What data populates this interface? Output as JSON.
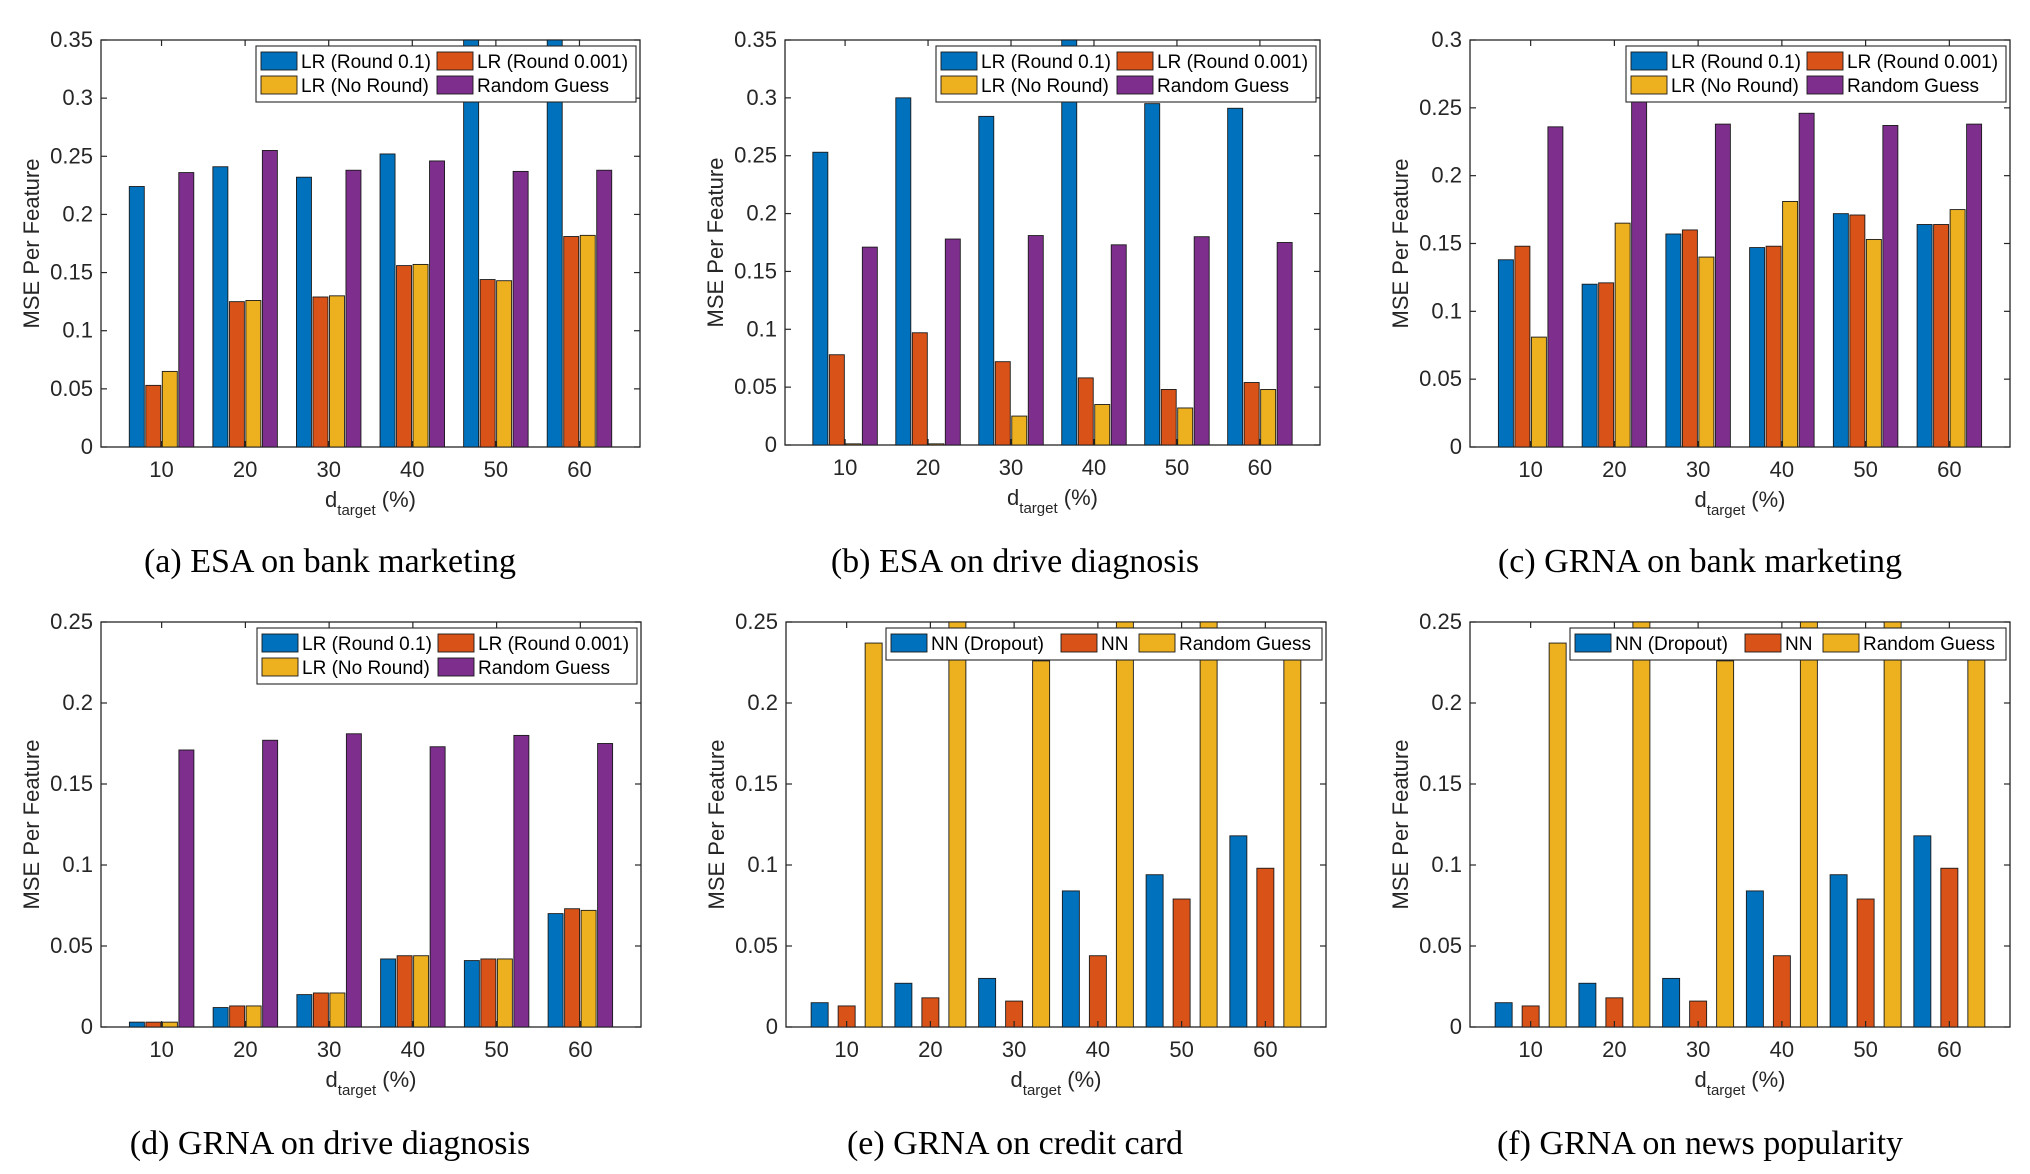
{
  "colors": {
    "blue": "#0072BD",
    "orange": "#D95319",
    "yellow": "#EDB120",
    "purple": "#7E2F8E",
    "axis": "#262626"
  },
  "chart_data": [
    {
      "id": "a",
      "type": "bar",
      "caption": "(a) ESA on bank marketing",
      "xlabel": "d",
      "xlabel_sub": "target",
      "xlabel_suffix": " (%)",
      "ylabel": "MSE Per Feature",
      "categories": [
        "10",
        "20",
        "30",
        "40",
        "50",
        "60"
      ],
      "ylim": [
        0,
        0.35
      ],
      "yticks": [
        0,
        0.05,
        0.1,
        0.15,
        0.2,
        0.25,
        0.3,
        0.35
      ],
      "ytick_labels": [
        "0",
        "0.05",
        "0.1",
        "0.15",
        "0.2",
        "0.25",
        "0.3",
        "0.35"
      ],
      "legend_position": "top-right",
      "legend_columns": 2,
      "series": [
        {
          "name": "LR (Round 0.1)",
          "color": "#0072BD",
          "values": [
            0.224,
            0.241,
            0.232,
            0.252,
            0.35,
            0.35
          ]
        },
        {
          "name": "LR (Round 0.001)",
          "color": "#D95319",
          "values": [
            0.053,
            0.125,
            0.129,
            0.156,
            0.144,
            0.181
          ]
        },
        {
          "name": "LR (No Round)",
          "color": "#EDB120",
          "values": [
            0.065,
            0.126,
            0.13,
            0.157,
            0.143,
            0.182
          ]
        },
        {
          "name": "Random Guess",
          "color": "#7E2F8E",
          "values": [
            0.236,
            0.255,
            0.238,
            0.246,
            0.237,
            0.238
          ]
        }
      ]
    },
    {
      "id": "b",
      "type": "bar",
      "caption": "(b) ESA on drive diagnosis",
      "xlabel": "d",
      "xlabel_sub": "target",
      "xlabel_suffix": " (%)",
      "ylabel": "MSE Per Feature",
      "categories": [
        "10",
        "20",
        "30",
        "40",
        "50",
        "60"
      ],
      "ylim": [
        0,
        0.35
      ],
      "yticks": [
        0,
        0.05,
        0.1,
        0.15,
        0.2,
        0.25,
        0.3,
        0.35
      ],
      "ytick_labels": [
        "0",
        "0.05",
        "0.1",
        "0.15",
        "0.2",
        "0.25",
        "0.3",
        "0.35"
      ],
      "legend_position": "top-right",
      "legend_columns": 2,
      "series": [
        {
          "name": "LR (Round 0.1)",
          "color": "#0072BD",
          "values": [
            0.253,
            0.3,
            0.284,
            0.35,
            0.295,
            0.291
          ]
        },
        {
          "name": "LR (Round 0.001)",
          "color": "#D95319",
          "values": [
            0.078,
            0.097,
            0.072,
            0.058,
            0.048,
            0.054
          ]
        },
        {
          "name": "LR (No Round)",
          "color": "#EDB120",
          "values": [
            0.001,
            0.001,
            0.025,
            0.035,
            0.032,
            0.048
          ]
        },
        {
          "name": "Random Guess",
          "color": "#7E2F8E",
          "values": [
            0.171,
            0.178,
            0.181,
            0.173,
            0.18,
            0.175
          ]
        }
      ]
    },
    {
      "id": "c",
      "type": "bar",
      "caption": "(c) GRNA on bank marketing",
      "xlabel": "d",
      "xlabel_sub": "target",
      "xlabel_suffix": " (%)",
      "ylabel": "MSE Per Feature",
      "categories": [
        "10",
        "20",
        "30",
        "40",
        "50",
        "60"
      ],
      "ylim": [
        0,
        0.3
      ],
      "yticks": [
        0,
        0.05,
        0.1,
        0.15,
        0.2,
        0.25,
        0.3
      ],
      "ytick_labels": [
        "0",
        "0.05",
        "0.1",
        "0.15",
        "0.2",
        "0.25",
        "0.3"
      ],
      "legend_position": "top-right",
      "legend_columns": 2,
      "series": [
        {
          "name": "LR (Round 0.1)",
          "color": "#0072BD",
          "values": [
            0.138,
            0.12,
            0.157,
            0.147,
            0.172,
            0.164
          ]
        },
        {
          "name": "LR (Round 0.001)",
          "color": "#D95319",
          "values": [
            0.148,
            0.121,
            0.16,
            0.148,
            0.171,
            0.164
          ]
        },
        {
          "name": "LR (No Round)",
          "color": "#EDB120",
          "values": [
            0.081,
            0.165,
            0.14,
            0.181,
            0.153,
            0.175
          ]
        },
        {
          "name": "Random Guess",
          "color": "#7E2F8E",
          "values": [
            0.236,
            0.256,
            0.238,
            0.246,
            0.237,
            0.238
          ]
        }
      ]
    },
    {
      "id": "d",
      "type": "bar",
      "caption": "(d) GRNA on drive diagnosis",
      "xlabel": "d",
      "xlabel_sub": "target",
      "xlabel_suffix": " (%)",
      "ylabel": "MSE Per Feature",
      "categories": [
        "10",
        "20",
        "30",
        "40",
        "50",
        "60"
      ],
      "ylim": [
        0,
        0.25
      ],
      "yticks": [
        0,
        0.05,
        0.1,
        0.15,
        0.2,
        0.25
      ],
      "ytick_labels": [
        "0",
        "0.05",
        "0.1",
        "0.15",
        "0.2",
        "0.25"
      ],
      "legend_position": "top-right",
      "legend_columns": 2,
      "series": [
        {
          "name": "LR (Round 0.1)",
          "color": "#0072BD",
          "values": [
            0.003,
            0.012,
            0.02,
            0.042,
            0.041,
            0.07
          ]
        },
        {
          "name": "LR (Round 0.001)",
          "color": "#D95319",
          "values": [
            0.003,
            0.013,
            0.021,
            0.044,
            0.042,
            0.073
          ]
        },
        {
          "name": "LR (No Round)",
          "color": "#EDB120",
          "values": [
            0.003,
            0.013,
            0.021,
            0.044,
            0.042,
            0.072
          ]
        },
        {
          "name": "Random Guess",
          "color": "#7E2F8E",
          "values": [
            0.171,
            0.177,
            0.181,
            0.173,
            0.18,
            0.175
          ]
        }
      ]
    },
    {
      "id": "e",
      "type": "bar",
      "caption": "(e) GRNA on credit card",
      "xlabel": "d",
      "xlabel_sub": "target",
      "xlabel_suffix": " (%)",
      "ylabel": "MSE Per Feature",
      "categories": [
        "10",
        "20",
        "30",
        "40",
        "50",
        "60"
      ],
      "ylim": [
        0,
        0.25
      ],
      "yticks": [
        0,
        0.05,
        0.1,
        0.15,
        0.2,
        0.25
      ],
      "ytick_labels": [
        "0",
        "0.05",
        "0.1",
        "0.15",
        "0.2",
        "0.25"
      ],
      "legend_position": "top-right",
      "legend_columns": 3,
      "series": [
        {
          "name": "NN (Dropout)",
          "color": "#0072BD",
          "values": [
            0.015,
            0.027,
            0.03,
            0.084,
            0.094,
            0.118
          ]
        },
        {
          "name": "NN",
          "color": "#D95319",
          "values": [
            0.013,
            0.018,
            0.016,
            0.044,
            0.079,
            0.098
          ]
        },
        {
          "name": "Random Guess",
          "color": "#EDB120",
          "values": [
            0.237,
            0.25,
            0.226,
            0.25,
            0.25,
            0.227
          ]
        }
      ]
    },
    {
      "id": "f",
      "type": "bar",
      "caption": "(f) GRNA on news popularity",
      "xlabel": "d",
      "xlabel_sub": "target",
      "xlabel_suffix": " (%)",
      "ylabel": "MSE Per Feature",
      "categories": [
        "10",
        "20",
        "30",
        "40",
        "50",
        "60"
      ],
      "ylim": [
        0,
        0.25
      ],
      "yticks": [
        0,
        0.05,
        0.1,
        0.15,
        0.2,
        0.25
      ],
      "ytick_labels": [
        "0",
        "0.05",
        "0.1",
        "0.15",
        "0.2",
        "0.25"
      ],
      "legend_position": "top-right",
      "legend_columns": 3,
      "series": [
        {
          "name": "NN (Dropout)",
          "color": "#0072BD",
          "values": [
            0.015,
            0.027,
            0.03,
            0.084,
            0.094,
            0.118
          ]
        },
        {
          "name": "NN",
          "color": "#D95319",
          "values": [
            0.013,
            0.018,
            0.016,
            0.044,
            0.079,
            0.098
          ]
        },
        {
          "name": "Random Guess",
          "color": "#EDB120",
          "values": [
            0.237,
            0.25,
            0.226,
            0.25,
            0.25,
            0.227
          ]
        }
      ]
    }
  ]
}
